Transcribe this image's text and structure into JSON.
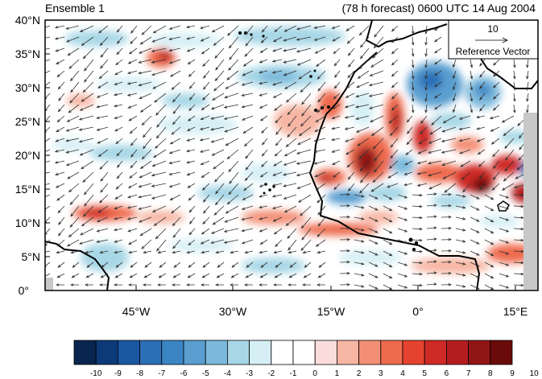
{
  "header": {
    "left_title": "Ensemble 1",
    "right_title": "(78 h forecast) 0600 UTC 14 Aug 2004"
  },
  "map": {
    "lat_range": [
      0,
      40
    ],
    "lon_range": [
      -56,
      20
    ],
    "lat_ticks": [
      "40°N",
      "35°N",
      "30°N",
      "25°N",
      "20°N",
      "15°N",
      "10°N",
      "5°N",
      "0°"
    ],
    "lon_ticks": [
      "45°W",
      "30°W",
      "15°W",
      "0°",
      "15°E"
    ],
    "vector_pattern": "northeasterly trade-wind flow over the Atlantic, southwesterly monsoon flow over West Africa"
  },
  "reference_vector": {
    "value": "10",
    "label": "Reference Vector"
  },
  "colorbar": {
    "labels": [
      "-10",
      "-9",
      "-8",
      "-7",
      "-6",
      "-5",
      "-4",
      "-3",
      "-2",
      "-1",
      "0",
      "1",
      "2",
      "3",
      "4",
      "5",
      "6",
      "7",
      "8",
      "9",
      "10"
    ],
    "colors": [
      "#08254f",
      "#0c3a78",
      "#1a56a1",
      "#2b6fb7",
      "#3c85c4",
      "#5a9fd0",
      "#7cb9dc",
      "#a7d7e6",
      "#d5eff5",
      "#ffffff",
      "#ffffff",
      "#fbdcdc",
      "#f7b5a3",
      "#f38f76",
      "#ee6a4e",
      "#e5432f",
      "#cf2a25",
      "#b51c1f",
      "#921515",
      "#6b0a0a"
    ]
  }
}
